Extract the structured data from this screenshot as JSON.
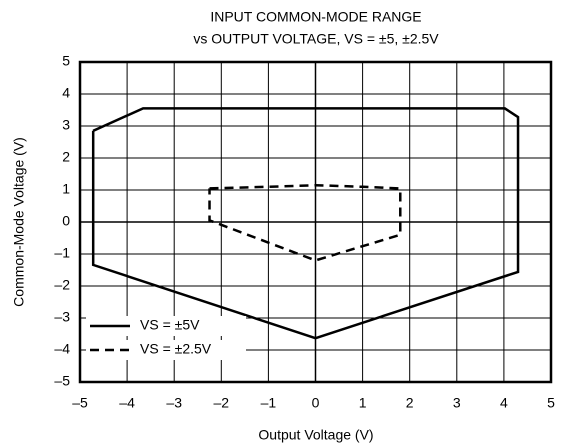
{
  "chart_data": {
    "type": "line",
    "title": [
      "INPUT COMMON-MODE RANGE",
      "vs OUTPUT VOLTAGE, VS = ±5, ±2.5V"
    ],
    "xlabel": "Output Voltage (V)",
    "ylabel": "Common-Mode Voltage (V)",
    "xlim": [
      -5,
      5
    ],
    "ylim": [
      -5,
      5
    ],
    "xticks": [
      {
        "value": -5,
        "label": "–5"
      },
      {
        "value": -4,
        "label": "–4"
      },
      {
        "value": -3,
        "label": "–3"
      },
      {
        "value": -2,
        "label": "–2"
      },
      {
        "value": -1,
        "label": "–1"
      },
      0,
      1,
      2,
      3,
      4,
      5
    ],
    "yticks": [
      {
        "value": -5,
        "label": "–5"
      },
      {
        "value": -4,
        "label": "–4"
      },
      {
        "value": -3,
        "label": "–3"
      },
      {
        "value": -2,
        "label": "–2"
      },
      {
        "value": -1,
        "label": "–1"
      },
      0,
      1,
      2,
      3,
      4,
      5
    ],
    "grid": true,
    "legend": "lower left",
    "series": [
      {
        "name": "VS = ±5V",
        "color": "#000000",
        "linestyle": "solid",
        "x": [
          -4.72,
          -3.66,
          4.02,
          4.3,
          4.3,
          0.0,
          -4.72,
          -4.72
        ],
        "values": [
          2.85,
          3.55,
          3.55,
          3.28,
          -1.56,
          -3.63,
          -1.34,
          2.85
        ]
      },
      {
        "name": "VS = ±2.5V",
        "color": "#000000",
        "linestyle": "dashed",
        "x": [
          -2.25,
          -1.0,
          0.0,
          1.0,
          1.8,
          1.8,
          0.0,
          -2.25,
          -2.25
        ],
        "values": [
          1.05,
          1.1,
          1.15,
          1.1,
          1.05,
          -0.4,
          -1.2,
          0.05,
          1.05
        ]
      }
    ]
  }
}
